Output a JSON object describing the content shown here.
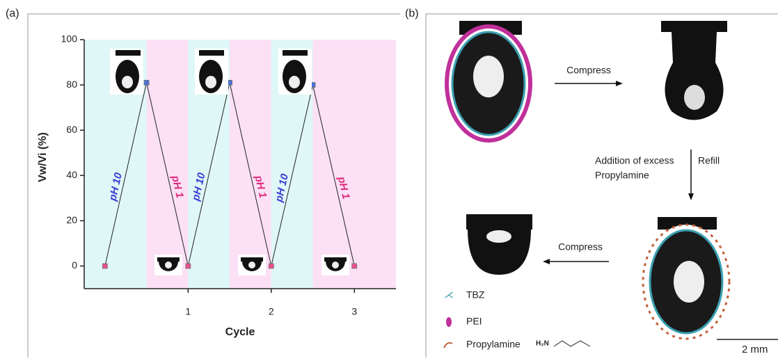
{
  "chart_data": {
    "type": "line",
    "x_label": "Cycle",
    "y_label": "Vw/Vi (%)",
    "x": [
      0,
      0.5,
      1,
      1.5,
      2,
      2.5,
      3
    ],
    "values": [
      0,
      81,
      0,
      81,
      0,
      80,
      0
    ],
    "point_colors": [
      "#e8508a",
      "#4a6fd6",
      "#e8508a",
      "#4a6fd6",
      "#e8508a",
      "#4a6fd6",
      "#e8508a"
    ],
    "line_color": "#222222",
    "xlim": [
      -0.25,
      3.5
    ],
    "xticks": [
      1,
      2,
      3
    ],
    "ylim": [
      -10,
      100
    ],
    "yticks": [
      0,
      20,
      40,
      60,
      80,
      100
    ],
    "regions": [
      {
        "from": -0.25,
        "to": 0.5,
        "color": "#dff7f7"
      },
      {
        "from": 0.5,
        "to": 1,
        "color": "#fbe0f6"
      },
      {
        "from": 1,
        "to": 1.5,
        "color": "#dff7f7"
      },
      {
        "from": 1.5,
        "to": 2,
        "color": "#fbe0f6"
      },
      {
        "from": 2,
        "to": 2.5,
        "color": "#dff7f7"
      },
      {
        "from": 2.5,
        "to": 3.5,
        "color": "#fbe0f6"
      }
    ],
    "annotations": [
      {
        "text": "pH 10",
        "color": "#3b3bd6"
      },
      {
        "text": "pH 1",
        "color": "#e02a7c"
      },
      {
        "text": "pH 10",
        "color": "#3b3bd6"
      },
      {
        "text": "pH 1",
        "color": "#e02a7c"
      },
      {
        "text": "pH 10",
        "color": "#3b3bd6"
      },
      {
        "text": "pH 1",
        "color": "#e02a7c"
      }
    ]
  },
  "panel_labels": [
    "(a)",
    "(b)"
  ],
  "diagram": {
    "step1": "Compress",
    "step2_line1": "Addition of excess",
    "step2_line2": "Propylamine",
    "step2_side": "Refill",
    "step3": "Compress",
    "legend": [
      "TBZ",
      "PEI",
      "Propylamine"
    ],
    "formula": "H₂N",
    "scale_bar": "2 mm"
  }
}
